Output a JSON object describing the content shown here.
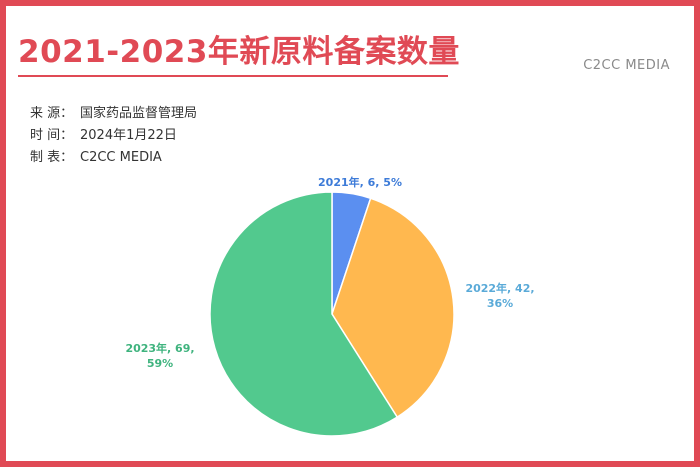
{
  "header": {
    "title": "2021-2023年新原料备案数量",
    "brand": "C2CC MEDIA"
  },
  "meta": [
    {
      "label": "来  源：",
      "value": "国家药品监督管理局"
    },
    {
      "label": "时  间：",
      "value": "2024年1月22日"
    },
    {
      "label": "制  表：",
      "value": "C2CC  MEDIA"
    }
  ],
  "chart_data": {
    "type": "pie",
    "categories": [
      "2021年",
      "2022年",
      "2023年"
    ],
    "values": [
      6,
      42,
      69
    ],
    "percents": [
      "5%",
      "36%",
      "59%"
    ],
    "colors": [
      "#5b8ff0",
      "#ffb84f",
      "#52c98e"
    ],
    "label_colors": [
      "#3d7bd8",
      "#5aaad8",
      "#3fb37e"
    ],
    "data_labels": [
      [
        "2021年, 6, 5%"
      ],
      [
        "2022年, 42,",
        "36%"
      ],
      [
        "2023年, 69,",
        "59%"
      ]
    ]
  },
  "colors": {
    "accent": "#e04a55"
  }
}
